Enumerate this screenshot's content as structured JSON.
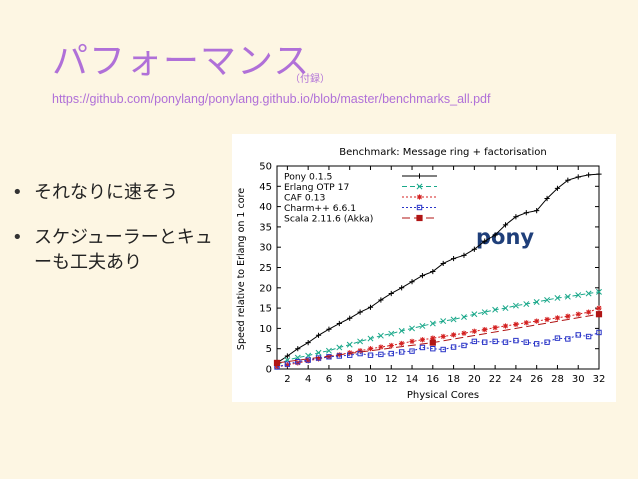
{
  "slide": {
    "title": "パフォーマンス",
    "title_note": "（付録）",
    "url": "https://github.com/ponylang/ponylang.github.io/blob/master/benchmarks_all.pdf",
    "bullets": [
      "それなりに速そう",
      "スケジューラーとキューも工夫あり"
    ],
    "colors": {
      "title": "#b070d8",
      "annotation": "#1f3f7a"
    }
  },
  "chart_data": {
    "type": "line",
    "title": "Benchmark: Message ring + factorisation",
    "xlabel": "Physical Cores",
    "ylabel": "Speed relative to Erlang on 1 core",
    "xlim": [
      1,
      32
    ],
    "ylim": [
      0,
      50
    ],
    "xticks": [
      2,
      4,
      6,
      8,
      10,
      12,
      14,
      16,
      18,
      20,
      22,
      24,
      26,
      28,
      30,
      32
    ],
    "yticks": [
      0,
      5,
      10,
      15,
      20,
      25,
      30,
      35,
      40,
      45,
      50
    ],
    "grid": false,
    "legend_position": "top-left",
    "annotation": "pony",
    "series": [
      {
        "name": "Pony 0.1.5",
        "color": "#000000",
        "marker": "plus",
        "dash": "solid",
        "x": [
          1,
          2,
          3,
          4,
          5,
          6,
          7,
          8,
          9,
          10,
          11,
          12,
          13,
          14,
          15,
          16,
          17,
          18,
          19,
          20,
          21,
          22,
          23,
          24,
          25,
          26,
          27,
          28,
          29,
          30,
          31,
          32
        ],
        "y": [
          1.5,
          3.2,
          5,
          6.5,
          8.3,
          9.8,
          11.2,
          12.5,
          14,
          15.2,
          17,
          18.6,
          20,
          21.5,
          23,
          24,
          26,
          27.2,
          28,
          29.5,
          31.5,
          33,
          35.5,
          37.5,
          38.5,
          39,
          42,
          44.5,
          46.5,
          47.3,
          47.8,
          48
        ]
      },
      {
        "name": "Erlang OTP 17",
        "color": "#1aa88a",
        "marker": "x",
        "dash": "dashed",
        "x": [
          1,
          2,
          3,
          4,
          5,
          6,
          7,
          8,
          9,
          10,
          11,
          12,
          13,
          14,
          15,
          16,
          17,
          18,
          19,
          20,
          21,
          22,
          23,
          24,
          25,
          26,
          27,
          28,
          29,
          30,
          31,
          32
        ],
        "y": [
          1,
          2.2,
          2.8,
          3.3,
          4,
          4.5,
          5.3,
          6,
          6.8,
          7.5,
          8.2,
          8.7,
          9.4,
          10,
          10.6,
          11.2,
          11.8,
          12.2,
          12.8,
          13.5,
          14,
          14.6,
          15,
          15.6,
          16,
          16.5,
          17,
          17.5,
          17.8,
          18.2,
          18.6,
          19
        ]
      },
      {
        "name": "CAF 0.13",
        "color": "#d42020",
        "marker": "star",
        "dash": "dotted",
        "x": [
          1,
          2,
          3,
          4,
          5,
          6,
          7,
          8,
          9,
          10,
          11,
          12,
          13,
          14,
          15,
          16,
          17,
          18,
          19,
          20,
          21,
          22,
          23,
          24,
          25,
          26,
          27,
          28,
          29,
          30,
          31,
          32
        ],
        "y": [
          0.5,
          1,
          1.5,
          2,
          2.5,
          3,
          3.5,
          4,
          4.5,
          5,
          5.4,
          5.8,
          6.3,
          6.8,
          7.2,
          7.6,
          8,
          8.4,
          8.8,
          9.3,
          9.7,
          10.2,
          10.6,
          11,
          11.4,
          11.8,
          12.2,
          12.6,
          13,
          13.5,
          14,
          15
        ]
      },
      {
        "name": "Charm++ 6.6.1",
        "color": "#2a35c8",
        "marker": "square",
        "dash": "dotted",
        "x": [
          1,
          2,
          3,
          4,
          5,
          6,
          7,
          8,
          9,
          10,
          11,
          12,
          13,
          14,
          15,
          16,
          17,
          18,
          19,
          20,
          21,
          22,
          23,
          24,
          25,
          26,
          27,
          28,
          29,
          30,
          31,
          32
        ],
        "y": [
          0.5,
          1.2,
          1.8,
          2.2,
          2.7,
          3,
          3.2,
          3.4,
          3.8,
          3.4,
          3.6,
          3.8,
          4.2,
          4.4,
          5.3,
          5,
          4.8,
          5.4,
          5.8,
          6.8,
          6.6,
          6.8,
          6.6,
          7,
          6.6,
          6.2,
          6.6,
          7.6,
          7.4,
          8.4,
          8,
          9
        ]
      },
      {
        "name": "Scala 2.11.6 (Akka)",
        "color": "#b01515",
        "marker": "filled-square",
        "dash": "long-dashed",
        "x": [
          1,
          16,
          32
        ],
        "y": [
          1.5,
          6.5,
          13.5
        ]
      }
    ]
  }
}
